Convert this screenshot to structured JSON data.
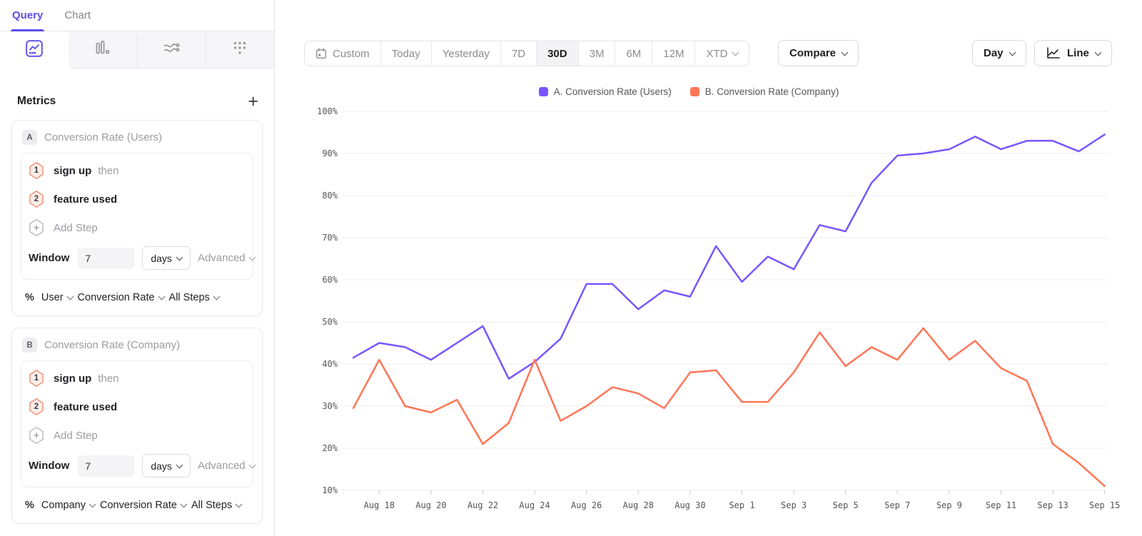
{
  "sidebar": {
    "tabs": [
      {
        "label": "Query",
        "active": true
      },
      {
        "label": "Chart",
        "active": false
      }
    ],
    "chart_type_tabs": [
      {
        "icon": "insights-line-icon",
        "active": true
      },
      {
        "icon": "bar-chart-icon",
        "active": false
      },
      {
        "icon": "flows-icon",
        "active": false
      },
      {
        "icon": "retention-dots-icon",
        "active": false
      }
    ],
    "metrics": {
      "title": "Metrics",
      "add_label": "+",
      "cards": [
        {
          "badge": "A",
          "title": "Conversion Rate (Users)",
          "steps": [
            {
              "num": "1",
              "label": "sign up",
              "suffix": "then"
            },
            {
              "num": "2",
              "label": "feature used",
              "suffix": ""
            }
          ],
          "add_step_label": "Add Step",
          "window_label": "Window",
          "window_value": "7",
          "window_unit": "days",
          "advanced_label": "Advanced",
          "measure": {
            "pct": "%",
            "entity": "User",
            "metric": "Conversion Rate",
            "steps": "All Steps"
          }
        },
        {
          "badge": "B",
          "title": "Conversion Rate (Company)",
          "steps": [
            {
              "num": "1",
              "label": "sign up",
              "suffix": "then"
            },
            {
              "num": "2",
              "label": "feature used",
              "suffix": ""
            }
          ],
          "add_step_label": "Add Step",
          "window_label": "Window",
          "window_value": "7",
          "window_unit": "days",
          "advanced_label": "Advanced",
          "measure": {
            "pct": "%",
            "entity": "Company",
            "metric": "Conversion Rate",
            "steps": "All Steps"
          }
        }
      ]
    }
  },
  "toolbar": {
    "date_ranges": [
      "Custom",
      "Today",
      "Yesterday",
      "7D",
      "30D",
      "3M",
      "6M",
      "12M",
      "XTD"
    ],
    "active_range": "30D",
    "compare_label": "Compare",
    "granularity_label": "Day",
    "chart_type_label": "Line"
  },
  "colors": {
    "accent_purple": "#5b4dea",
    "series_a": "#7856ff",
    "series_b": "#ff7557",
    "gridline": "#ededf0",
    "axis_text": "#55555c"
  },
  "chart_data": {
    "type": "line",
    "unit": "%",
    "ylim": [
      10,
      100
    ],
    "ytick_step": 10,
    "grid": "horizontal",
    "legend_position": "top-center",
    "x": [
      "Aug 17",
      "Aug 18",
      "Aug 19",
      "Aug 20",
      "Aug 21",
      "Aug 22",
      "Aug 23",
      "Aug 24",
      "Aug 25",
      "Aug 26",
      "Aug 27",
      "Aug 28",
      "Aug 29",
      "Aug 30",
      "Aug 31",
      "Sep 1",
      "Sep 2",
      "Sep 3",
      "Sep 4",
      "Sep 5",
      "Sep 6",
      "Sep 7",
      "Sep 8",
      "Sep 9",
      "Sep 10",
      "Sep 11",
      "Sep 12",
      "Sep 13",
      "Sep 14",
      "Sep 15"
    ],
    "x_tick_labels": [
      "Aug 18",
      "Aug 20",
      "Aug 22",
      "Aug 24",
      "Aug 26",
      "Aug 28",
      "Aug 30",
      "Sep 1",
      "Sep 3",
      "Sep 5",
      "Sep 7",
      "Sep 9",
      "Sep 11",
      "Sep 13",
      "Sep 15"
    ],
    "series": [
      {
        "name": "A. Conversion Rate (Users)",
        "color": "#7856ff",
        "values": [
          41.5,
          45,
          44,
          41,
          45,
          49,
          36.5,
          40.5,
          46,
          59,
          59,
          53,
          57.5,
          56,
          68,
          59.5,
          65.5,
          62.5,
          73,
          71.5,
          83,
          89.5,
          90,
          91,
          94,
          91,
          93,
          93,
          90.5,
          94.5
        ]
      },
      {
        "name": "B. Conversion Rate (Company)",
        "color": "#ff7557",
        "values": [
          29.5,
          41,
          30,
          28.5,
          31.5,
          21,
          26,
          41,
          26.5,
          30,
          34.5,
          33,
          29.5,
          38,
          38.5,
          31,
          31,
          38,
          47.5,
          39.5,
          44,
          41,
          48.5,
          41,
          45.5,
          39,
          36,
          21,
          16.5,
          11
        ]
      }
    ]
  }
}
